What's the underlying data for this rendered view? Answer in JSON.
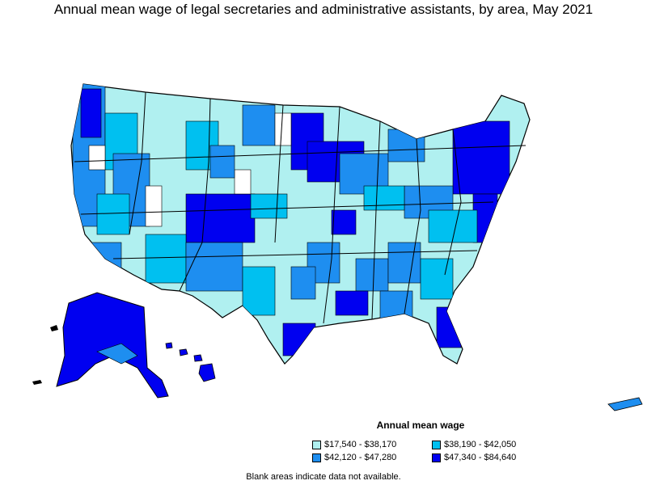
{
  "title": "Annual mean wage of legal secretaries and administrative assistants, by area, May 2021",
  "legend": {
    "title": "Annual mean wage",
    "items": [
      {
        "label": "$17,540 - $38,170",
        "color": "#b0f0f0"
      },
      {
        "label": "$38,190 - $42,050",
        "color": "#00c0f0"
      },
      {
        "label": "$42,120 - $47,280",
        "color": "#1e8ef0"
      },
      {
        "label": "$47,340 - $84,640",
        "color": "#0000f0"
      }
    ]
  },
  "note": "Blank areas indicate data not available."
}
